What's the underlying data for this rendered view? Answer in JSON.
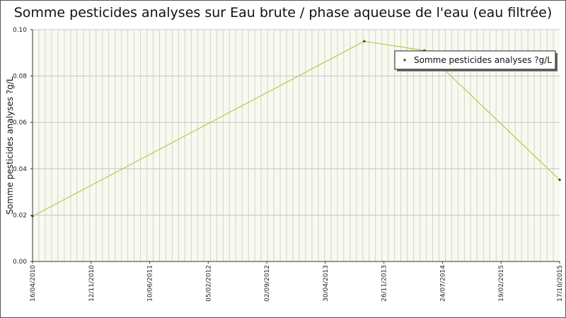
{
  "chart_data": {
    "type": "line",
    "title": "Somme pesticides analyses sur Eau brute / phase aqueuse de l'eau (eau filtrée)",
    "xlabel": "",
    "ylabel": "Somme pesticides analyses ?g/L",
    "x_tick_labels": [
      "16/04/2010",
      "12/11/2010",
      "10/06/2011",
      "05/02/2012",
      "02/09/2012",
      "30/04/2013",
      "26/11/2013",
      "24/07/2014",
      "19/02/2015",
      "17/10/2015"
    ],
    "y_tick_labels": [
      "0.00",
      "0.02",
      "0.04",
      "0.06",
      "0.08",
      "0.10"
    ],
    "ylim": [
      0,
      0.1
    ],
    "xlim": [
      "16/04/2010",
      "17/10/2015"
    ],
    "grid": true,
    "legend_position": "top-right",
    "series": [
      {
        "name": "Somme pesticides analyses ?g/L",
        "color": "#99cc33",
        "points": [
          {
            "x": "16/04/2010",
            "y": 0.0195
          },
          {
            "x": "02/10/2013",
            "y": 0.095
          },
          {
            "x": "19/05/2014",
            "y": 0.091
          },
          {
            "x": "17/10/2015",
            "y": 0.0352
          }
        ]
      }
    ]
  }
}
